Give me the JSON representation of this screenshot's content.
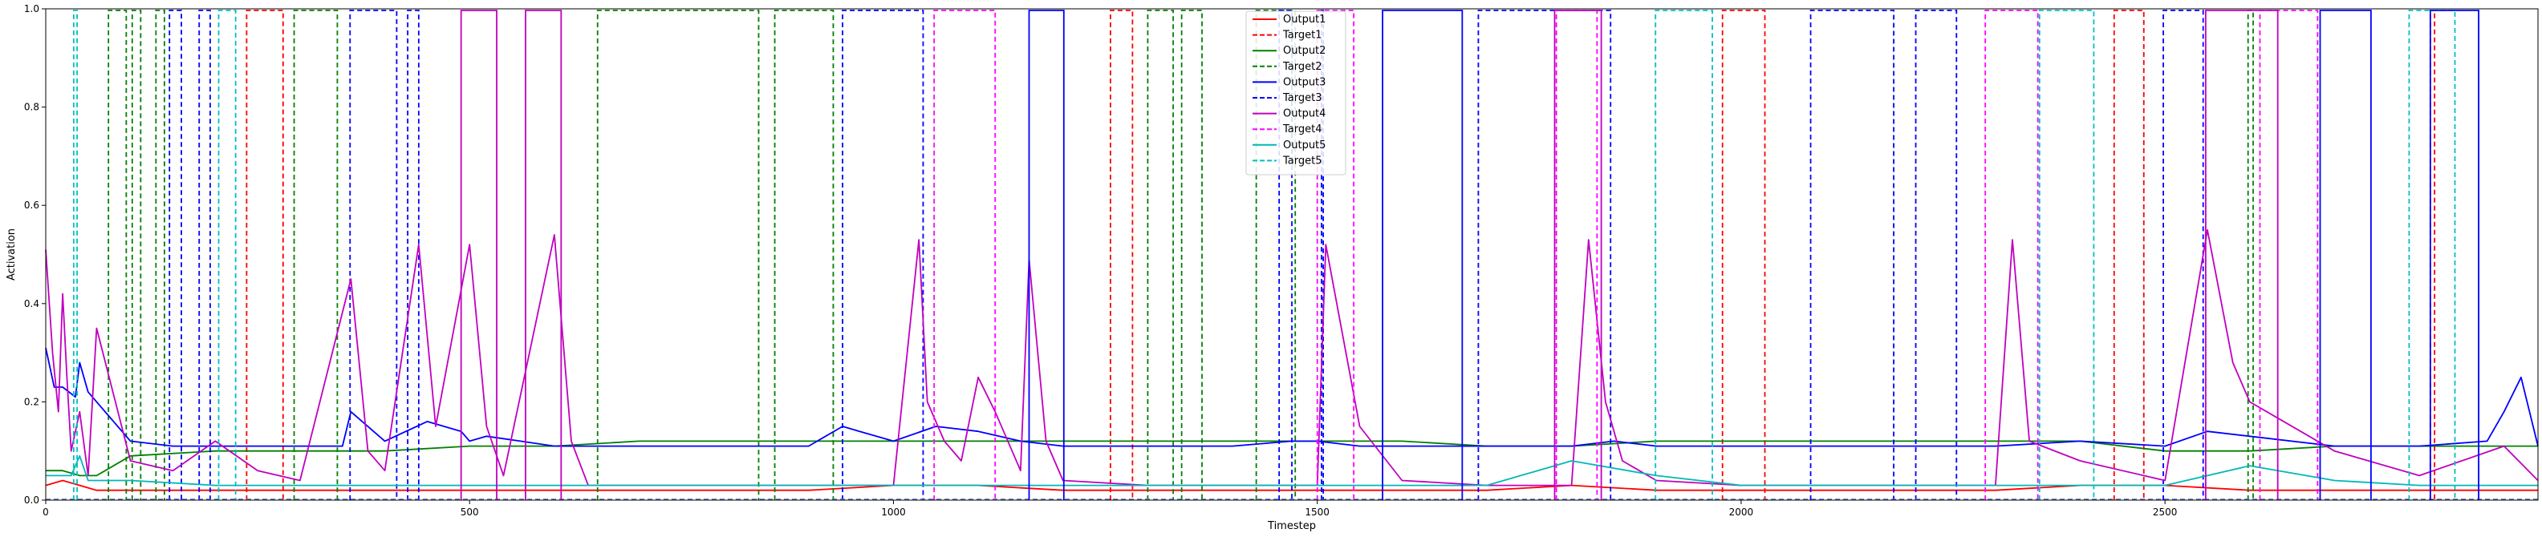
{
  "chart_data": {
    "type": "line",
    "title": "",
    "xlabel": "Timestep",
    "ylabel": "Activation",
    "xlim": [
      0,
      2940
    ],
    "ylim": [
      0,
      1.0
    ],
    "x_ticks": [
      0,
      500,
      1000,
      1500,
      2000,
      2500
    ],
    "y_ticks": [
      0.0,
      0.2,
      0.4,
      0.6,
      0.8,
      1.0
    ],
    "x_tick_labels": [
      "0",
      "500",
      "1000",
      "1500",
      "2000",
      "2500"
    ],
    "y_tick_labels": [
      "0.0",
      "0.2",
      "0.4",
      "0.6",
      "0.8",
      "1.0"
    ],
    "grid": false,
    "legend_position": "top-center",
    "series": [
      {
        "name": "Output1",
        "color": "#ff0000",
        "style": "solid",
        "x": [
          0,
          20,
          40,
          60,
          100,
          200,
          300,
          400,
          500,
          600,
          700,
          800,
          900,
          1000,
          1100,
          1200,
          1300,
          1400,
          1500,
          1600,
          1700,
          1800,
          1900,
          2000,
          2100,
          2200,
          2300,
          2400,
          2500,
          2600,
          2700,
          2800,
          2900,
          2940
        ],
        "y": [
          0.03,
          0.04,
          0.03,
          0.02,
          0.02,
          0.02,
          0.02,
          0.02,
          0.02,
          0.02,
          0.02,
          0.02,
          0.02,
          0.03,
          0.03,
          0.02,
          0.02,
          0.02,
          0.02,
          0.02,
          0.02,
          0.03,
          0.02,
          0.02,
          0.02,
          0.02,
          0.02,
          0.03,
          0.03,
          0.02,
          0.02,
          0.02,
          0.02,
          0.02
        ]
      },
      {
        "name": "Target1",
        "color": "#ff0000",
        "style": "dashed",
        "intervals": [
          [
            237,
            280
          ],
          [
            1256,
            1282
          ],
          [
            1978,
            2028
          ],
          [
            2440,
            2475
          ],
          [
            2813,
            2818
          ]
        ]
      },
      {
        "name": "Output2",
        "color": "#008000",
        "style": "solid",
        "x": [
          0,
          20,
          40,
          60,
          100,
          200,
          300,
          400,
          500,
          600,
          700,
          800,
          900,
          1000,
          1100,
          1200,
          1300,
          1400,
          1500,
          1600,
          1700,
          1800,
          1900,
          2000,
          2100,
          2200,
          2300,
          2400,
          2500,
          2600,
          2700,
          2800,
          2900,
          2940
        ],
        "y": [
          0.06,
          0.06,
          0.05,
          0.05,
          0.09,
          0.1,
          0.1,
          0.1,
          0.11,
          0.11,
          0.12,
          0.12,
          0.12,
          0.12,
          0.12,
          0.12,
          0.12,
          0.12,
          0.12,
          0.12,
          0.11,
          0.11,
          0.12,
          0.12,
          0.12,
          0.12,
          0.12,
          0.12,
          0.1,
          0.1,
          0.11,
          0.11,
          0.11,
          0.11
        ]
      },
      {
        "name": "Target2",
        "color": "#008000",
        "style": "dashed",
        "intervals": [
          [
            74,
            95
          ],
          [
            102,
            112
          ],
          [
            130,
            140
          ],
          [
            293,
            344
          ],
          [
            651,
            841
          ],
          [
            860,
            929
          ],
          [
            1300,
            1330
          ],
          [
            1340,
            1364
          ],
          [
            1428,
            1474
          ],
          [
            2598,
            2604
          ]
        ]
      },
      {
        "name": "Output3",
        "color": "#0000ff",
        "style": "solid",
        "x": [
          0,
          10,
          20,
          35,
          40,
          50,
          100,
          150,
          200,
          300,
          350,
          360,
          400,
          450,
          490,
          500,
          520,
          560,
          600,
          700,
          800,
          900,
          940,
          960,
          1000,
          1050,
          1100,
          1150,
          1200,
          1300,
          1400,
          1470,
          1500,
          1550,
          1600,
          1700,
          1800,
          1850,
          1900,
          2000,
          2050,
          2100,
          2150,
          2200,
          2300,
          2400,
          2500,
          2550,
          2600,
          2700,
          2800,
          2880,
          2900,
          2920,
          2940
        ],
        "y": [
          0.31,
          0.23,
          0.23,
          0.21,
          0.28,
          0.22,
          0.12,
          0.11,
          0.11,
          0.11,
          0.11,
          0.18,
          0.12,
          0.16,
          0.14,
          0.12,
          0.13,
          0.12,
          0.11,
          0.11,
          0.11,
          0.11,
          0.15,
          0.14,
          0.12,
          0.15,
          0.14,
          0.12,
          0.11,
          0.11,
          0.11,
          0.12,
          0.12,
          0.11,
          0.11,
          0.11,
          0.11,
          0.12,
          0.11,
          0.11,
          0.11,
          0.11,
          0.11,
          0.11,
          0.11,
          0.12,
          0.11,
          0.14,
          0.13,
          0.11,
          0.11,
          0.12,
          0.18,
          0.25,
          0.11
        ]
      },
      {
        "name": "Target3",
        "color": "#0000ff",
        "style": "dashed",
        "intervals": [
          [
            146,
            160
          ],
          [
            181,
            194
          ],
          [
            359,
            414
          ],
          [
            427,
            440
          ],
          [
            940,
            1035
          ],
          [
            1455,
            1470
          ],
          [
            1505,
            1507
          ],
          [
            1690,
            1846
          ],
          [
            2082,
            2180
          ],
          [
            2206,
            2254
          ],
          [
            2498,
            2545
          ]
        ]
      },
      {
        "name": "Output4",
        "color": "#c000c0",
        "style": "solid",
        "x": [
          0,
          8,
          15,
          20,
          25,
          30,
          40,
          50,
          60,
          100,
          150,
          200,
          250,
          300,
          360,
          380,
          400,
          440,
          460,
          500,
          520,
          540,
          600,
          620,
          640,
          700,
          800,
          900,
          1000,
          1030,
          1040,
          1060,
          1080,
          1100,
          1120,
          1150,
          1160,
          1180,
          1200,
          1300,
          1400,
          1500,
          1510,
          1550,
          1600,
          1700,
          1800,
          1820,
          1840,
          1860,
          1900,
          2000,
          2100,
          2200,
          2300,
          2320,
          2340,
          2400,
          2500,
          2550,
          2580,
          2600,
          2700,
          2800,
          2900,
          2940
        ],
        "y": [
          0.51,
          0.3,
          0.18,
          0.42,
          0.25,
          0.1,
          0.18,
          0.05,
          0.35,
          0.08,
          0.06,
          0.12,
          0.06,
          0.04,
          0.45,
          0.1,
          0.06,
          0.52,
          0.15,
          0.52,
          0.15,
          0.05,
          0.54,
          0.12,
          0.03,
          0.03,
          0.03,
          0.03,
          0.03,
          0.53,
          0.2,
          0.12,
          0.08,
          0.25,
          0.18,
          0.06,
          0.49,
          0.12,
          0.04,
          0.03,
          0.03,
          0.03,
          0.52,
          0.15,
          0.04,
          0.03,
          0.03,
          0.53,
          0.2,
          0.08,
          0.04,
          0.03,
          0.03,
          0.03,
          0.03,
          0.53,
          0.12,
          0.08,
          0.04,
          0.55,
          0.28,
          0.2,
          0.1,
          0.05,
          0.11,
          0.04
        ]
      },
      {
        "name": "Target4",
        "color": "#ff00ff",
        "style": "dashed",
        "intervals": [
          [
            1048,
            1120
          ],
          [
            1500,
            1543
          ],
          [
            1782,
            1830
          ],
          [
            2288,
            2350
          ],
          [
            2612,
            2680
          ]
        ]
      },
      {
        "name": "Output5",
        "color": "#00b8b8",
        "style": "solid",
        "x": [
          0,
          30,
          40,
          50,
          100,
          200,
          300,
          400,
          500,
          600,
          700,
          800,
          900,
          1000,
          1100,
          1200,
          1300,
          1400,
          1500,
          1600,
          1700,
          1800,
          1900,
          2000,
          2100,
          2200,
          2300,
          2400,
          2500,
          2600,
          2700,
          2800,
          2900,
          2940
        ],
        "y": [
          0.05,
          0.05,
          0.09,
          0.04,
          0.04,
          0.03,
          0.03,
          0.03,
          0.03,
          0.03,
          0.03,
          0.03,
          0.03,
          0.03,
          0.03,
          0.03,
          0.03,
          0.03,
          0.03,
          0.03,
          0.03,
          0.08,
          0.05,
          0.03,
          0.03,
          0.03,
          0.03,
          0.03,
          0.03,
          0.07,
          0.04,
          0.03,
          0.03,
          0.03
        ]
      },
      {
        "name": "Target5",
        "color": "#00c0c0",
        "style": "dashed",
        "intervals": [
          [
            33,
            37
          ],
          [
            204,
            224
          ],
          [
            1899,
            1966
          ],
          [
            2352,
            2416
          ],
          [
            2788,
            2842
          ]
        ]
      },
      {
        "name": "Output block",
        "color": "#0000ff",
        "style": "solid-box",
        "legend": false,
        "intervals": [
          [
            1160,
            1201
          ],
          [
            1577,
            1671
          ],
          [
            2683,
            2743
          ],
          [
            2813,
            2870
          ]
        ]
      },
      {
        "name": "Output4 block",
        "color": "#c000c0",
        "style": "solid-box",
        "legend": false,
        "intervals": [
          [
            490,
            532
          ],
          [
            566,
            608
          ],
          [
            1780,
            1835
          ],
          [
            2548,
            2633
          ]
        ]
      }
    ]
  }
}
